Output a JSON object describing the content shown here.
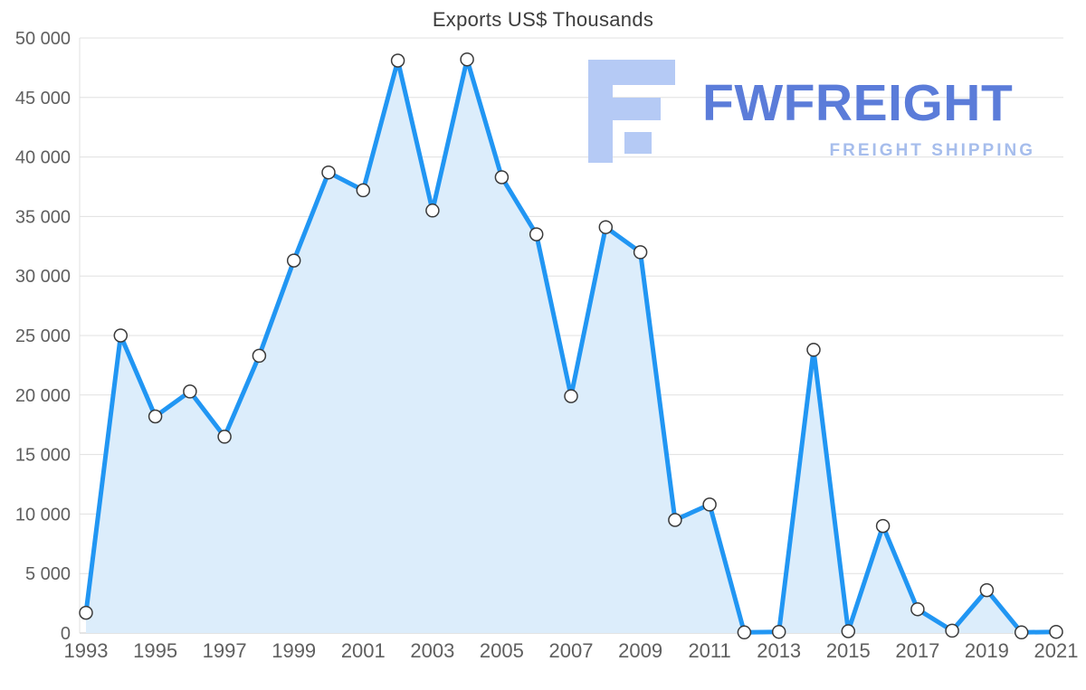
{
  "page": {
    "background": "#ffffff"
  },
  "chart_data": {
    "type": "area",
    "title": "Exports US$ Thousands",
    "series_name": "Exports",
    "x": [
      1993,
      1994,
      1995,
      1996,
      1997,
      1998,
      1999,
      2000,
      2001,
      2002,
      2003,
      2004,
      2005,
      2006,
      2007,
      2008,
      2009,
      2010,
      2011,
      2012,
      2013,
      2014,
      2015,
      2016,
      2017,
      2018,
      2019,
      2020,
      2021
    ],
    "values": [
      1700,
      25000,
      18200,
      20300,
      16500,
      23300,
      31300,
      38700,
      37200,
      48100,
      35500,
      48200,
      38300,
      33500,
      19900,
      34100,
      32000,
      9500,
      10800,
      50,
      100,
      23800,
      150,
      9000,
      2000,
      200,
      3600,
      50,
      100
    ],
    "ylim": [
      0,
      50000
    ],
    "ytick_values": [
      0,
      5000,
      10000,
      15000,
      20000,
      25000,
      30000,
      35000,
      40000,
      45000,
      50000
    ],
    "ytick_labels": [
      "0",
      "5 000",
      "10 000",
      "15 000",
      "20 000",
      "25 000",
      "30 000",
      "35 000",
      "40 000",
      "45 000",
      "50 000"
    ],
    "xtick_years": [
      1993,
      1995,
      1997,
      1999,
      2001,
      2003,
      2005,
      2007,
      2009,
      2011,
      2013,
      2015,
      2017,
      2019,
      2021
    ],
    "grid": true,
    "legend": "none",
    "colors": {
      "line": "#2196F3",
      "fill": "#DCEDFB",
      "marker_fill": "#FFFFFF",
      "marker_stroke": "#3A3A3A",
      "grid": "#E0E0E0",
      "axis_line": "#C9C9C9",
      "axis_text": "#5F5F5F",
      "title_text": "#3D3D3D"
    }
  },
  "watermark": {
    "wordmark": "FWFREIGHT",
    "subtitle": "FREIGHT SHIPPING",
    "glyph_icon": "fw-logo-glyph",
    "colors": {
      "wordmark": "#5B7CD9",
      "subtitle": "#A6BDEC",
      "glyph": "#B5CAF5"
    }
  }
}
